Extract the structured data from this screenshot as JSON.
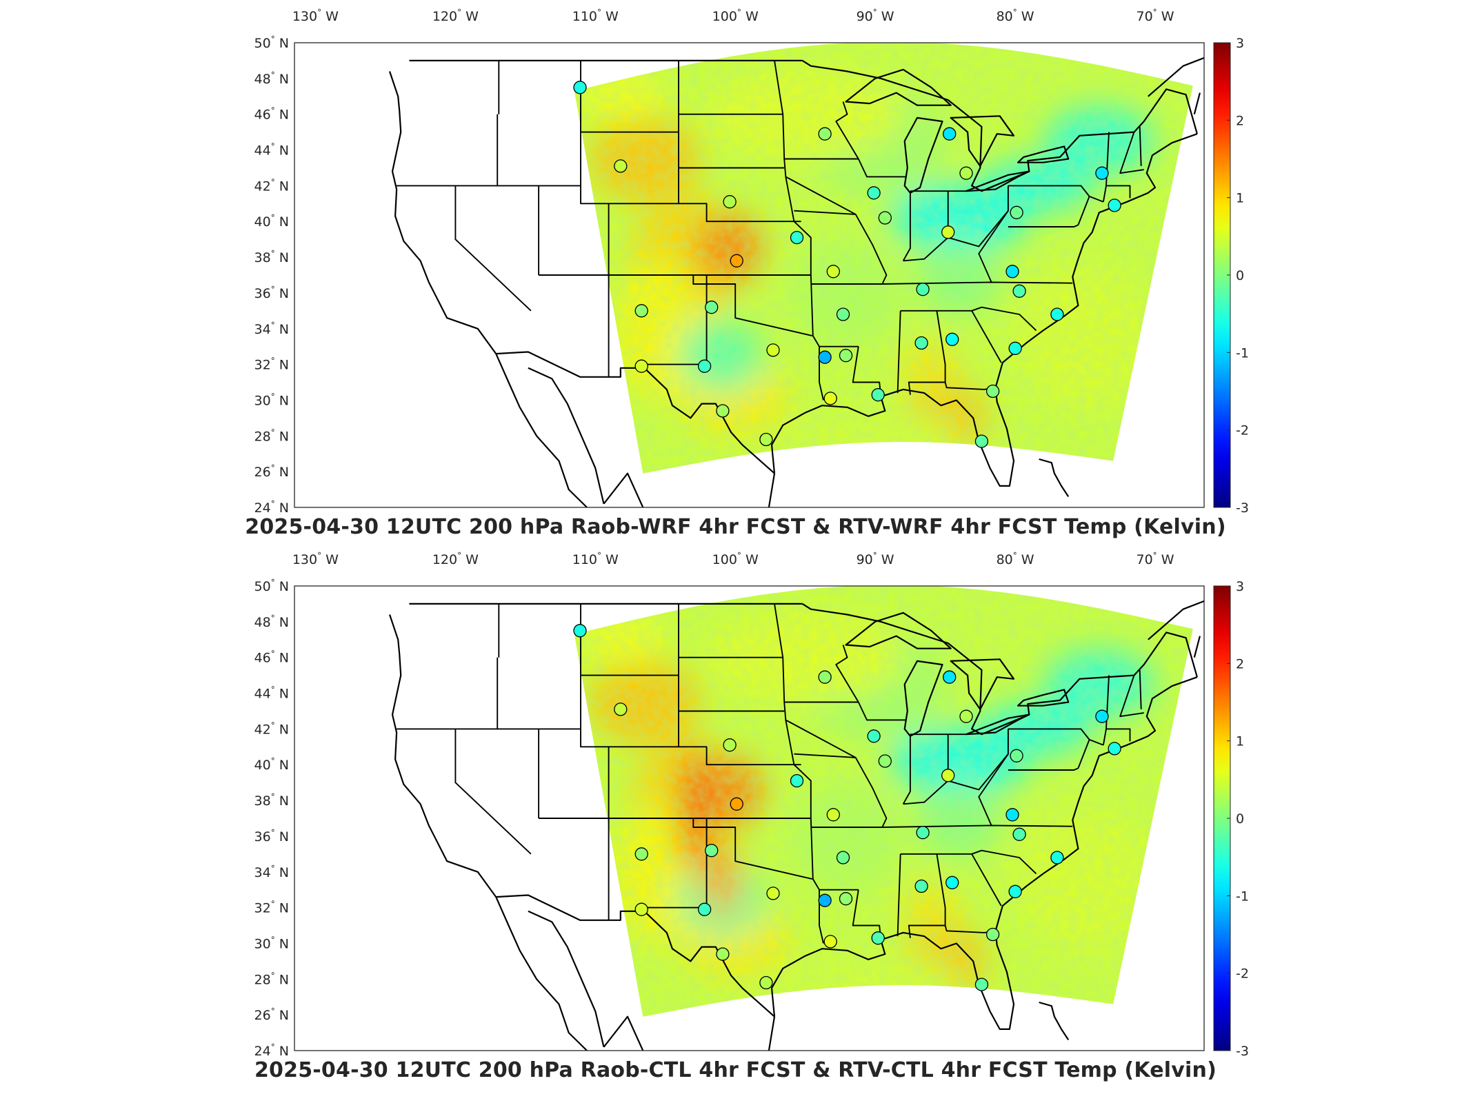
{
  "panels": [
    {
      "title": "2025-04-30 12UTC 200 hPa Raob-WRF 4hr FCST & RTV-WRF 4hr FCST Temp (Kelvin)",
      "stations": [
        {
          "lon": -111.1,
          "lat": 47.5,
          "v": -0.6
        },
        {
          "lon": -108.2,
          "lat": 43.1,
          "v": 0.4
        },
        {
          "lon": -100.4,
          "lat": 41.1,
          "v": 0.3
        },
        {
          "lon": -95.6,
          "lat": 39.1,
          "v": -0.5
        },
        {
          "lon": -99.9,
          "lat": 37.8,
          "v": 1.3
        },
        {
          "lon": -93.6,
          "lat": 44.9,
          "v": 0.1
        },
        {
          "lon": -90.1,
          "lat": 41.6,
          "v": -0.4
        },
        {
          "lon": -89.3,
          "lat": 40.2,
          "v": 0.1
        },
        {
          "lon": -84.7,
          "lat": 44.9,
          "v": -0.9
        },
        {
          "lon": -83.5,
          "lat": 42.7,
          "v": 0.3
        },
        {
          "lon": -79.9,
          "lat": 40.5,
          "v": -0.1
        },
        {
          "lon": -84.8,
          "lat": 39.4,
          "v": 0.5
        },
        {
          "lon": -73.8,
          "lat": 42.7,
          "v": -0.9
        },
        {
          "lon": -72.9,
          "lat": 40.9,
          "v": -0.6
        },
        {
          "lon": -80.2,
          "lat": 37.2,
          "v": -0.9
        },
        {
          "lon": -79.7,
          "lat": 36.1,
          "v": -0.3
        },
        {
          "lon": -77.0,
          "lat": 34.8,
          "v": -0.6
        },
        {
          "lon": -86.6,
          "lat": 36.2,
          "v": -0.3
        },
        {
          "lon": -92.3,
          "lat": 34.8,
          "v": -0.1
        },
        {
          "lon": -93.0,
          "lat": 37.2,
          "v": 0.5
        },
        {
          "lon": -86.7,
          "lat": 33.2,
          "v": -0.3
        },
        {
          "lon": -84.5,
          "lat": 33.4,
          "v": -0.7
        },
        {
          "lon": -80.0,
          "lat": 32.9,
          "v": -0.6
        },
        {
          "lon": -81.6,
          "lat": 30.5,
          "v": 0.0
        },
        {
          "lon": -82.4,
          "lat": 27.7,
          "v": -0.2
        },
        {
          "lon": -89.8,
          "lat": 30.3,
          "v": -0.3
        },
        {
          "lon": -92.1,
          "lat": 32.5,
          "v": 0.1
        },
        {
          "lon": -93.6,
          "lat": 32.4,
          "v": -1.2
        },
        {
          "lon": -97.3,
          "lat": 32.8,
          "v": 0.5
        },
        {
          "lon": -97.8,
          "lat": 27.8,
          "v": 0.3
        },
        {
          "lon": -100.9,
          "lat": 29.4,
          "v": 0.2
        },
        {
          "lon": -101.7,
          "lat": 35.2,
          "v": -0.1
        },
        {
          "lon": -102.2,
          "lat": 31.9,
          "v": -0.4
        },
        {
          "lon": -106.7,
          "lat": 35.0,
          "v": 0.1
        },
        {
          "lon": -106.7,
          "lat": 31.9,
          "v": 0.5
        },
        {
          "lon": -93.2,
          "lat": 30.1,
          "v": 0.6
        }
      ]
    },
    {
      "title": "2025-04-30 12UTC 200 hPa Raob-CTL 4hr FCST & RTV-CTL 4hr FCST Temp (Kelvin)",
      "stations": [
        {
          "lon": -111.1,
          "lat": 47.5,
          "v": -0.6
        },
        {
          "lon": -108.2,
          "lat": 43.1,
          "v": 0.4
        },
        {
          "lon": -100.4,
          "lat": 41.1,
          "v": 0.3
        },
        {
          "lon": -95.6,
          "lat": 39.1,
          "v": -0.5
        },
        {
          "lon": -99.9,
          "lat": 37.8,
          "v": 1.3
        },
        {
          "lon": -93.6,
          "lat": 44.9,
          "v": 0.1
        },
        {
          "lon": -90.1,
          "lat": 41.6,
          "v": -0.4
        },
        {
          "lon": -89.3,
          "lat": 40.2,
          "v": 0.1
        },
        {
          "lon": -84.7,
          "lat": 44.9,
          "v": -0.9
        },
        {
          "lon": -83.5,
          "lat": 42.7,
          "v": 0.3
        },
        {
          "lon": -79.9,
          "lat": 40.5,
          "v": -0.1
        },
        {
          "lon": -84.8,
          "lat": 39.4,
          "v": 0.5
        },
        {
          "lon": -73.8,
          "lat": 42.7,
          "v": -0.9
        },
        {
          "lon": -72.9,
          "lat": 40.9,
          "v": -0.6
        },
        {
          "lon": -80.2,
          "lat": 37.2,
          "v": -0.9
        },
        {
          "lon": -79.7,
          "lat": 36.1,
          "v": -0.3
        },
        {
          "lon": -77.0,
          "lat": 34.8,
          "v": -0.6
        },
        {
          "lon": -86.6,
          "lat": 36.2,
          "v": -0.3
        },
        {
          "lon": -92.3,
          "lat": 34.8,
          "v": -0.1
        },
        {
          "lon": -93.0,
          "lat": 37.2,
          "v": 0.5
        },
        {
          "lon": -86.7,
          "lat": 33.2,
          "v": -0.3
        },
        {
          "lon": -84.5,
          "lat": 33.4,
          "v": -0.7
        },
        {
          "lon": -80.0,
          "lat": 32.9,
          "v": -0.6
        },
        {
          "lon": -81.6,
          "lat": 30.5,
          "v": 0.0
        },
        {
          "lon": -82.4,
          "lat": 27.7,
          "v": -0.2
        },
        {
          "lon": -89.8,
          "lat": 30.3,
          "v": -0.3
        },
        {
          "lon": -92.1,
          "lat": 32.5,
          "v": 0.1
        },
        {
          "lon": -93.6,
          "lat": 32.4,
          "v": -1.2
        },
        {
          "lon": -97.3,
          "lat": 32.8,
          "v": 0.5
        },
        {
          "lon": -97.8,
          "lat": 27.8,
          "v": 0.3
        },
        {
          "lon": -100.9,
          "lat": 29.4,
          "v": 0.2
        },
        {
          "lon": -101.7,
          "lat": 35.2,
          "v": -0.1
        },
        {
          "lon": -102.2,
          "lat": 31.9,
          "v": -0.4
        },
        {
          "lon": -106.7,
          "lat": 35.0,
          "v": 0.1
        },
        {
          "lon": -106.7,
          "lat": 31.9,
          "v": 0.5
        },
        {
          "lon": -93.2,
          "lat": 30.1,
          "v": 0.6
        }
      ]
    }
  ],
  "lon_ticks": [
    "130° W",
    "120° W",
    "110° W",
    "100° W",
    "90° W",
    "80° W",
    "70° W"
  ],
  "lon_values": [
    -130,
    -120,
    -110,
    -100,
    -90,
    -80,
    -70
  ],
  "lat_ticks": [
    "50° N",
    "48° N",
    "46° N",
    "44° N",
    "42° N",
    "40° N",
    "38° N",
    "36° N",
    "34° N",
    "32° N",
    "30° N",
    "28° N",
    "26° N",
    "24° N"
  ],
  "lat_values": [
    50,
    48,
    46,
    44,
    42,
    40,
    38,
    36,
    34,
    32,
    30,
    28,
    26,
    24
  ],
  "map_extent": {
    "lon_min": -131.5,
    "lon_max": -66.5,
    "lat_min": 24,
    "lat_max": 50
  },
  "colorbar": {
    "ticks": [
      "3",
      "2",
      "1",
      "0",
      "-1",
      "-2",
      "-3"
    ],
    "values": [
      3,
      2,
      1,
      0,
      -1,
      -2,
      -3
    ],
    "range": [
      -3,
      3
    ],
    "colormap": "jet"
  }
}
